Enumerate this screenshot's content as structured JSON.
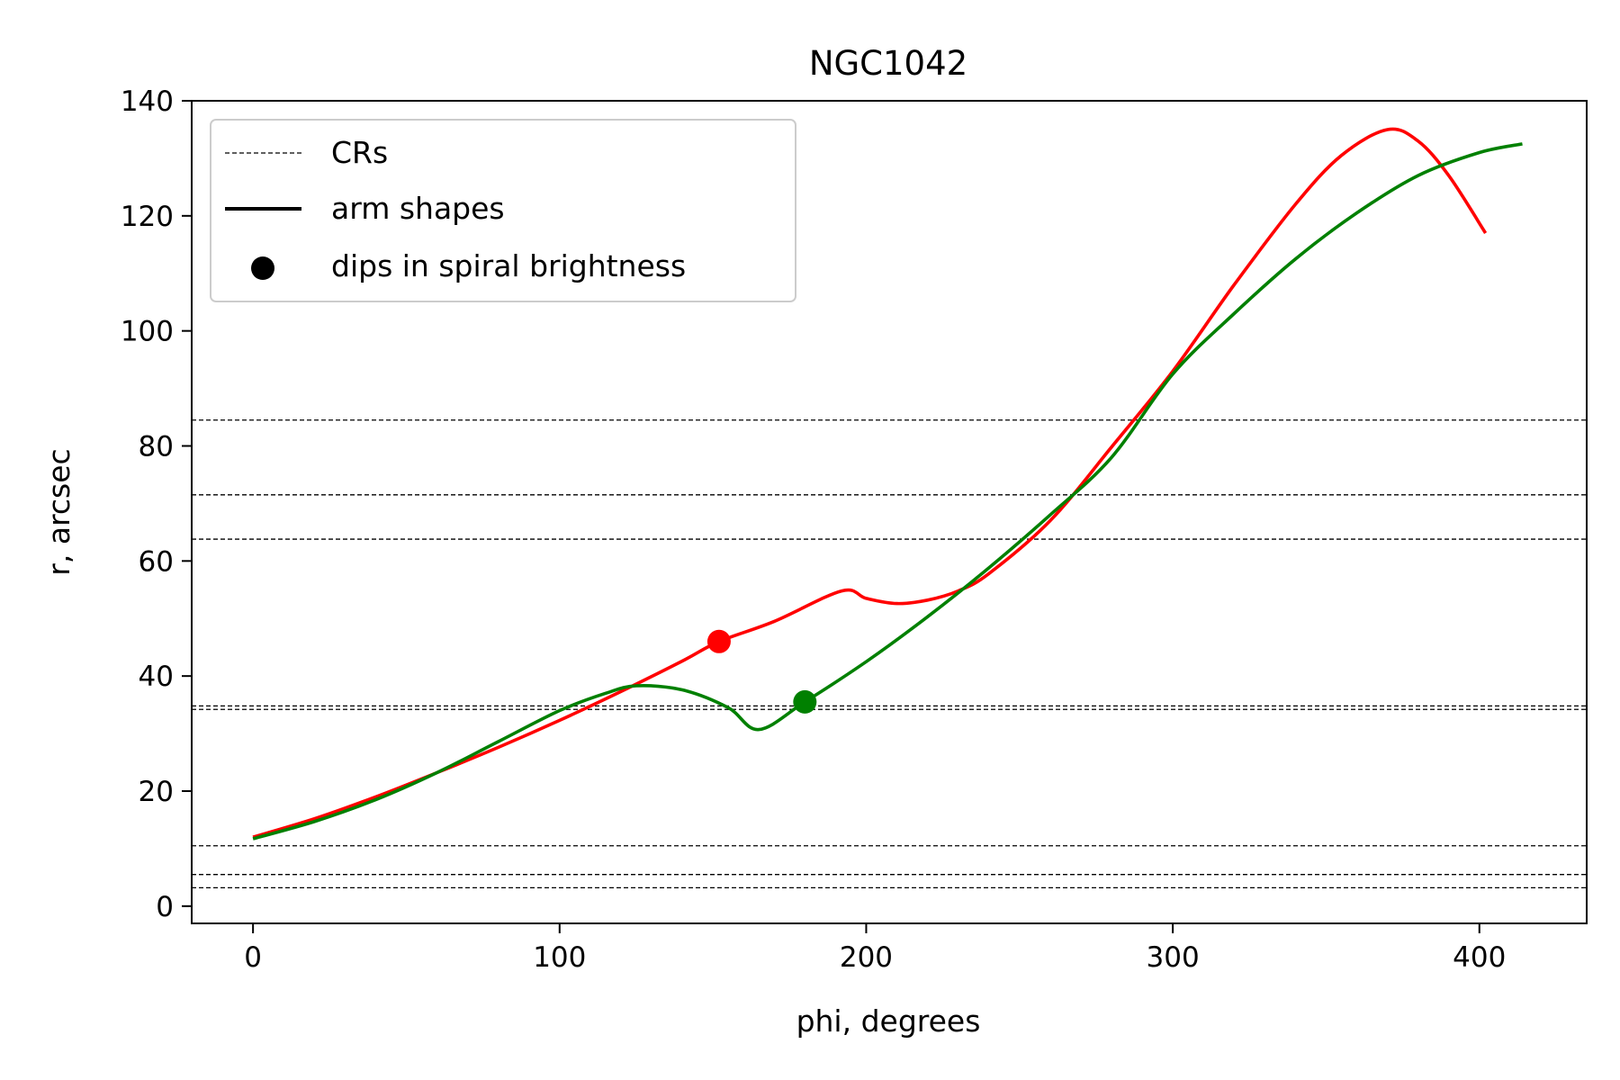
{
  "chart_data": {
    "type": "line",
    "title": "NGC1042",
    "xlabel": "phi, degrees",
    "ylabel": "r, arcsec",
    "xlim": [
      -20,
      435
    ],
    "ylim": [
      -3,
      140
    ],
    "x_ticks": [
      0,
      100,
      200,
      300,
      400
    ],
    "y_ticks": [
      0,
      20,
      40,
      60,
      80,
      100,
      120,
      140
    ],
    "grid": false,
    "legend": {
      "placement": "top-left",
      "entries": [
        {
          "label": "CRs",
          "style": "dashed"
        },
        {
          "label": "arm shapes",
          "style": "solid"
        },
        {
          "label": "dips in spiral brightness",
          "style": "marker"
        }
      ]
    },
    "cr_lines": [
      84.5,
      71.5,
      63.8,
      34.8,
      34.2,
      10.5,
      5.5,
      3.2
    ],
    "series": [
      {
        "color": "#ff0000",
        "points": [
          [
            0,
            12
          ],
          [
            20,
            15.2
          ],
          [
            40,
            19
          ],
          [
            60,
            23.2
          ],
          [
            80,
            27.6
          ],
          [
            100,
            32.3
          ],
          [
            120,
            37.3
          ],
          [
            140,
            42.6
          ],
          [
            152,
            46
          ],
          [
            170,
            49.5
          ],
          [
            192,
            54.8
          ],
          [
            200,
            53.5
          ],
          [
            210,
            52.6
          ],
          [
            220,
            53.2
          ],
          [
            230,
            54.8
          ],
          [
            240,
            57.8
          ],
          [
            260,
            67
          ],
          [
            280,
            79.8
          ],
          [
            300,
            93
          ],
          [
            320,
            108
          ],
          [
            340,
            122
          ],
          [
            355,
            130.5
          ],
          [
            370,
            135
          ],
          [
            380,
            133
          ],
          [
            390,
            127
          ],
          [
            402,
            117
          ]
        ],
        "dips": [
          [
            152,
            46
          ]
        ]
      },
      {
        "color": "#008000",
        "points": [
          [
            0,
            11.7
          ],
          [
            20,
            14.7
          ],
          [
            40,
            18.5
          ],
          [
            60,
            23.2
          ],
          [
            80,
            28.6
          ],
          [
            100,
            34
          ],
          [
            115,
            37
          ],
          [
            125,
            38.3
          ],
          [
            140,
            37.6
          ],
          [
            155,
            34.5
          ],
          [
            165,
            30.7
          ],
          [
            180,
            35.5
          ],
          [
            200,
            42.5
          ],
          [
            220,
            50.3
          ],
          [
            240,
            58.8
          ],
          [
            260,
            68
          ],
          [
            280,
            78
          ],
          [
            300,
            92.5
          ],
          [
            320,
            103
          ],
          [
            340,
            112.5
          ],
          [
            360,
            120.5
          ],
          [
            380,
            127
          ],
          [
            400,
            131
          ],
          [
            414,
            132.5
          ]
        ],
        "dips": [
          [
            180,
            35.5
          ]
        ]
      }
    ]
  }
}
